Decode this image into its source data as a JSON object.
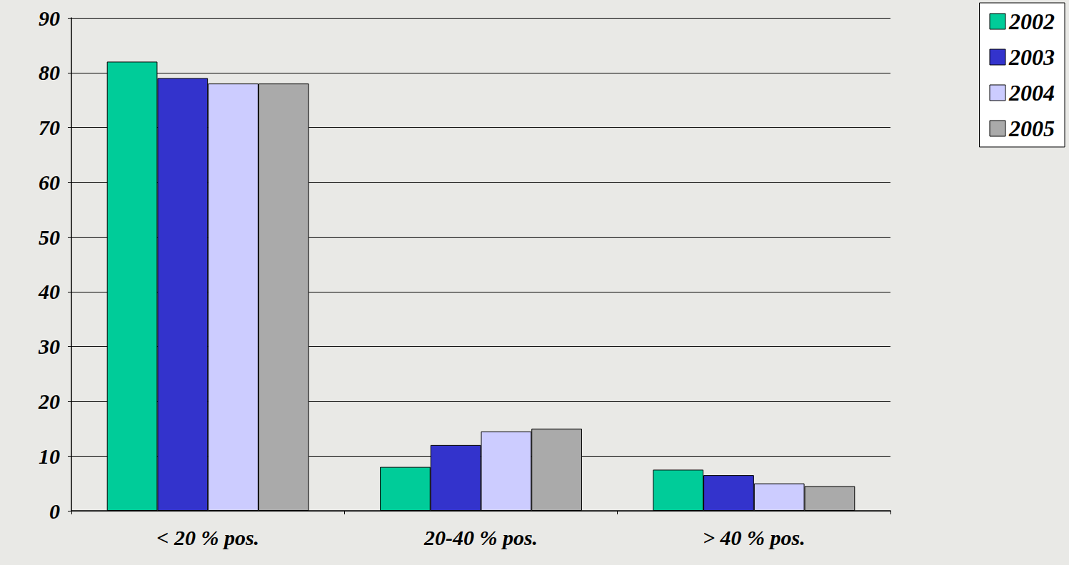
{
  "chart_data": {
    "type": "bar",
    "categories": [
      "< 20 % pos.",
      "20-40 % pos.",
      "> 40 % pos."
    ],
    "series": [
      {
        "name": "2002",
        "color": "#00cc99",
        "values": [
          82,
          8,
          7.5
        ]
      },
      {
        "name": "2003",
        "color": "#3333cc",
        "values": [
          79,
          12,
          6.5
        ]
      },
      {
        "name": "2004",
        "color": "#ccccff",
        "values": [
          78,
          14.5,
          5
        ]
      },
      {
        "name": "2005",
        "color": "#aaaaaa",
        "values": [
          78,
          15,
          4.5
        ]
      }
    ],
    "ylim": [
      0,
      90
    ],
    "yticks": [
      0,
      10,
      20,
      30,
      40,
      50,
      60,
      70,
      80,
      90
    ],
    "grid": true,
    "legend": "top-right"
  }
}
